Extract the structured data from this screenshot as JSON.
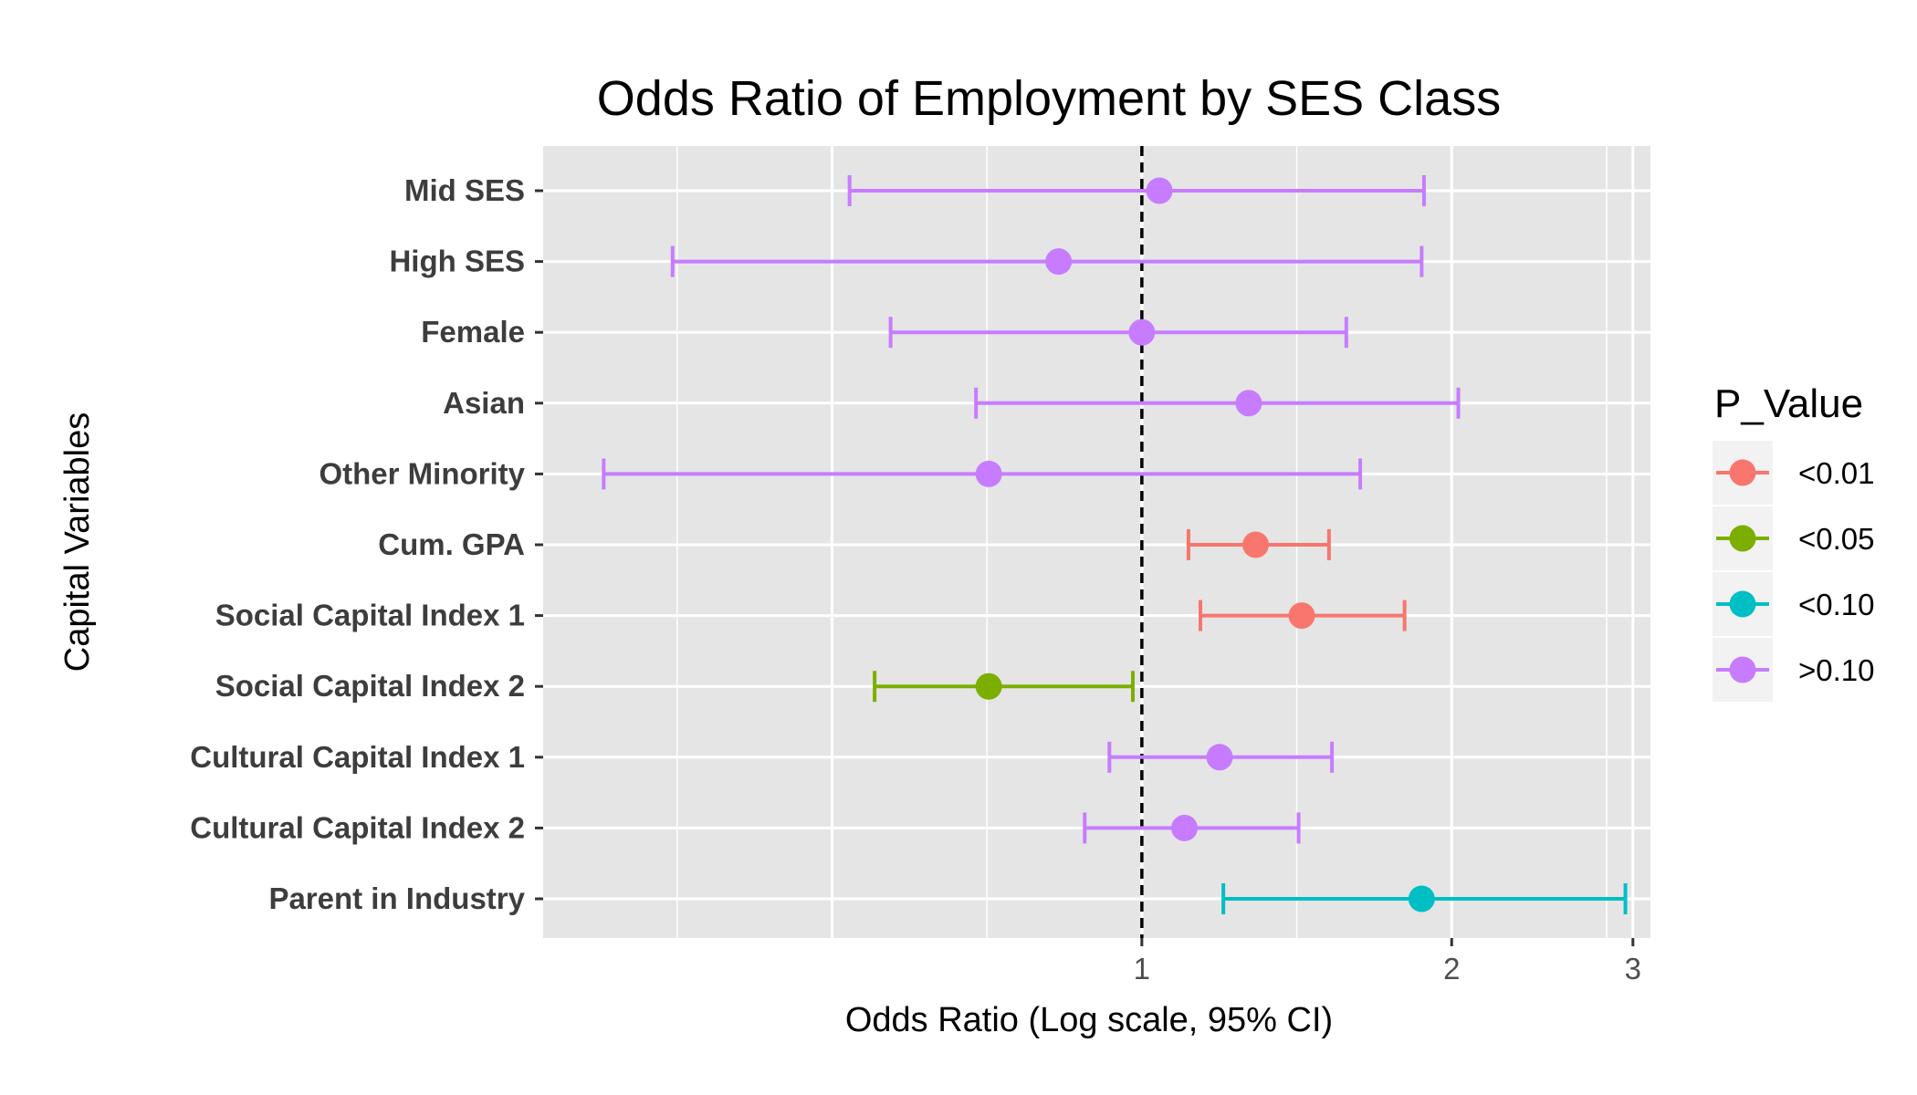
{
  "chart_data": {
    "type": "errorbar",
    "title": "Odds Ratio of Employment by SES Class",
    "xlabel": "Odds Ratio (Log scale, 95% CI)",
    "ylabel": "Capital Variables",
    "x_scale": "log",
    "xlim": [
      0.262,
      3.12
    ],
    "x_ticks": [
      1,
      2,
      3
    ],
    "reference_line": {
      "x": 1,
      "style": "dashed",
      "color": "#000000"
    },
    "panel_background": "#e5e5e5",
    "grid_color": "#ffffff",
    "grid": true,
    "legend": {
      "title": "P_Value",
      "placement": "right",
      "entries": [
        {
          "label": "<0.01",
          "color": "#F8766D"
        },
        {
          "label": "<0.05",
          "color": "#7CAE00"
        },
        {
          "label": "<0.10",
          "color": "#00BFC4"
        },
        {
          "label": ">0.10",
          "color": "#C77CFF"
        }
      ]
    },
    "rows": [
      {
        "label": "Mid SES",
        "estimate": 1.04,
        "lower": 0.52,
        "upper": 1.88,
        "p_group": ">0.10"
      },
      {
        "label": "High SES",
        "estimate": 0.83,
        "lower": 0.35,
        "upper": 1.87,
        "p_group": ">0.10"
      },
      {
        "label": "Female",
        "estimate": 1.0,
        "lower": 0.57,
        "upper": 1.58,
        "p_group": ">0.10"
      },
      {
        "label": "Asian",
        "estimate": 1.27,
        "lower": 0.69,
        "upper": 2.03,
        "p_group": ">0.10"
      },
      {
        "label": "Other Minority",
        "estimate": 0.71,
        "lower": 0.3,
        "upper": 1.63,
        "p_group": ">0.10"
      },
      {
        "label": "Cum. GPA",
        "estimate": 1.29,
        "lower": 1.11,
        "upper": 1.52,
        "p_group": "<0.01"
      },
      {
        "label": "Social Capital Index 1",
        "estimate": 1.43,
        "lower": 1.14,
        "upper": 1.8,
        "p_group": "<0.01"
      },
      {
        "label": "Social Capital Index 2",
        "estimate": 0.71,
        "lower": 0.55,
        "upper": 0.98,
        "p_group": "<0.05"
      },
      {
        "label": "Cultural Capital Index 1",
        "estimate": 1.19,
        "lower": 0.93,
        "upper": 1.53,
        "p_group": ">0.10"
      },
      {
        "label": "Cultural Capital Index 2",
        "estimate": 1.1,
        "lower": 0.88,
        "upper": 1.42,
        "p_group": ">0.10"
      },
      {
        "label": "Parent in Industry",
        "estimate": 1.87,
        "lower": 1.2,
        "upper": 2.95,
        "p_group": "<0.10"
      }
    ]
  }
}
